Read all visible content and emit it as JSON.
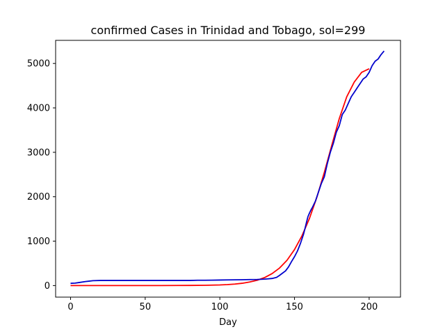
{
  "chart_data": {
    "type": "line",
    "title": "confirmed Cases in Trinidad and Tobago, sol=299",
    "xlabel": "Day",
    "ylabel": "",
    "xlim": [
      -10,
      221
    ],
    "ylim": [
      -260,
      5520
    ],
    "xticks": [
      0,
      50,
      100,
      150,
      200
    ],
    "yticks": [
      0,
      1000,
      2000,
      3000,
      4000,
      5000
    ],
    "grid": false,
    "series": [
      {
        "color": "#ff0000",
        "x": [
          0,
          20,
          40,
          60,
          80,
          90,
          100,
          105,
          110,
          115,
          120,
          125,
          130,
          135,
          140,
          145,
          150,
          155,
          160,
          165,
          170,
          175,
          180,
          185,
          190,
          195,
          200
        ],
        "values": [
          0,
          0,
          0,
          1,
          3,
          6,
          14,
          22,
          34,
          52,
          80,
          120,
          180,
          270,
          395,
          570,
          810,
          1120,
          1510,
          1990,
          2550,
          3160,
          3760,
          4250,
          4580,
          4800,
          4880
        ]
      },
      {
        "color": "#0000cc",
        "x": [
          0,
          3,
          6,
          10,
          15,
          20,
          30,
          40,
          50,
          60,
          70,
          80,
          85,
          90,
          95,
          100,
          105,
          110,
          115,
          120,
          125,
          130,
          135,
          138,
          140,
          142,
          144,
          146,
          148,
          150,
          152,
          154,
          156,
          157,
          158,
          159,
          160,
          161,
          162,
          164,
          166,
          168,
          170,
          172,
          174,
          176,
          178,
          180,
          182,
          184,
          186,
          188,
          190,
          192,
          194,
          196,
          198,
          200,
          202,
          204,
          206,
          208,
          210
        ],
        "values": [
          50,
          55,
          70,
          90,
          110,
          115,
          115,
          115,
          115,
          115,
          115,
          115,
          120,
          120,
          122,
          125,
          128,
          130,
          132,
          135,
          138,
          145,
          160,
          185,
          230,
          280,
          330,
          420,
          540,
          650,
          780,
          950,
          1150,
          1280,
          1420,
          1550,
          1630,
          1700,
          1760,
          1900,
          2100,
          2300,
          2450,
          2750,
          3000,
          3200,
          3450,
          3600,
          3850,
          3950,
          4100,
          4250,
          4350,
          4450,
          4550,
          4650,
          4700,
          4800,
          4950,
          5050,
          5100,
          5200,
          5280
        ]
      }
    ]
  }
}
